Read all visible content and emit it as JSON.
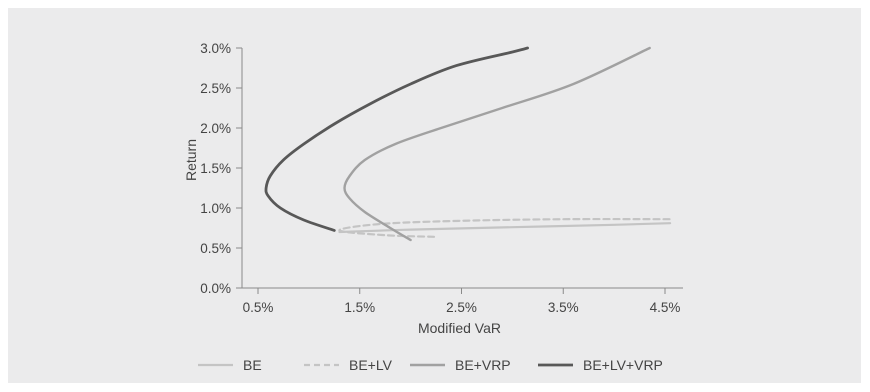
{
  "chart_data": {
    "type": "line",
    "title": "",
    "xlabel": "Modified VaR",
    "ylabel": "Return",
    "xlim": [
      0.5,
      4.5
    ],
    "ylim": [
      0.0,
      3.0
    ],
    "x_ticks": [
      "0.5%",
      "1.5%",
      "2.5%",
      "3.5%",
      "4.5%"
    ],
    "y_ticks": [
      "0.0%",
      "0.5%",
      "1.0%",
      "1.5%",
      "2.0%",
      "2.5%",
      "3.0%"
    ],
    "grid": false,
    "legend_position": "bottom",
    "series": [
      {
        "name": "BE",
        "color": "#c4c4c4",
        "dash": "solid",
        "points": [
          [
            1.3,
            0.7
          ],
          [
            2.0,
            0.73
          ],
          [
            3.0,
            0.76
          ],
          [
            4.0,
            0.79
          ],
          [
            4.55,
            0.81
          ]
        ]
      },
      {
        "name": "BE+LV",
        "color": "#c4c4c4",
        "dash": "dashed",
        "points": [
          [
            2.23,
            0.64
          ],
          [
            1.75,
            0.66
          ],
          [
            1.3,
            0.72
          ],
          [
            1.7,
            0.8
          ],
          [
            2.5,
            0.84
          ],
          [
            3.5,
            0.86
          ],
          [
            4.55,
            0.86
          ]
        ]
      },
      {
        "name": "BE+VRP",
        "color": "#a1a1a1",
        "dash": "solid",
        "points": [
          [
            2.0,
            0.6
          ],
          [
            1.8,
            0.75
          ],
          [
            1.55,
            0.95
          ],
          [
            1.4,
            1.12
          ],
          [
            1.35,
            1.25
          ],
          [
            1.4,
            1.4
          ],
          [
            1.55,
            1.6
          ],
          [
            1.85,
            1.8
          ],
          [
            2.3,
            2.0
          ],
          [
            2.9,
            2.25
          ],
          [
            3.6,
            2.55
          ],
          [
            4.35,
            3.0
          ]
        ]
      },
      {
        "name": "BE+LV+VRP",
        "color": "#585858",
        "dash": "solid",
        "points": [
          [
            1.25,
            0.72
          ],
          [
            0.95,
            0.85
          ],
          [
            0.72,
            1.0
          ],
          [
            0.6,
            1.15
          ],
          [
            0.58,
            1.25
          ],
          [
            0.62,
            1.4
          ],
          [
            0.75,
            1.6
          ],
          [
            0.95,
            1.8
          ],
          [
            1.25,
            2.05
          ],
          [
            1.6,
            2.3
          ],
          [
            2.0,
            2.55
          ],
          [
            2.45,
            2.78
          ],
          [
            3.0,
            2.95
          ],
          [
            3.15,
            3.0
          ]
        ]
      }
    ]
  }
}
